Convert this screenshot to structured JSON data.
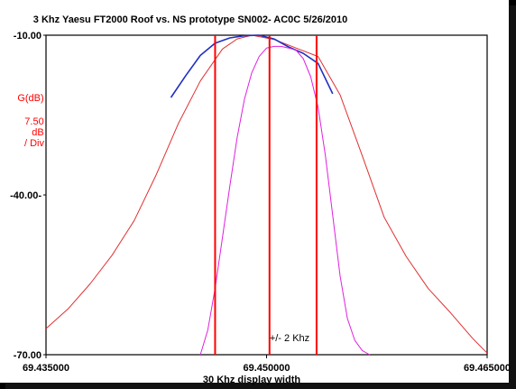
{
  "chart_data": {
    "type": "line",
    "title": "3 Khz Yaesu FT2000 Roof vs. NS prototype SN002- AC0C 5/26/2010",
    "ylabel_lines": [
      "G(dB)",
      "7.50",
      "dB",
      "/ Div"
    ],
    "xlabel": "30 Khz display width",
    "annotation": "+/- 2 Khz",
    "x_units": "MHz",
    "xlim": [
      69.435,
      69.465
    ],
    "ylim": [
      -70,
      -10
    ],
    "y_ticks": [
      -10,
      -40,
      -70
    ],
    "y_tick_labels": [
      "-10.00",
      "-40.00-",
      "-70.00"
    ],
    "x_ticks": [
      69.435,
      69.45,
      69.465
    ],
    "x_tick_labels": [
      "69.435000",
      "69.450000",
      "69.465000"
    ],
    "grid": false,
    "markers_x": [
      69.4465,
      69.4502,
      69.4534
    ],
    "series": [
      {
        "color": "#e03030",
        "width": 1,
        "x": [
          69.435,
          69.4365,
          69.438,
          69.4395,
          69.441,
          69.4425,
          69.444,
          69.4455,
          69.447,
          69.448,
          69.449,
          69.4505,
          69.452,
          69.4535,
          69.455,
          69.4565,
          69.458,
          69.4595,
          69.461,
          69.4625,
          69.464,
          69.465
        ],
        "values": [
          -65.1,
          -61.4,
          -56.7,
          -51.3,
          -44.8,
          -36.2,
          -26.6,
          -18.6,
          -12.6,
          -10.7,
          -10.0,
          -10.8,
          -12.4,
          -14.0,
          -21.2,
          -32.6,
          -44.2,
          -51.6,
          -57.6,
          -62.1,
          -66.9,
          -69.7
        ]
      },
      {
        "color": "#2030c0",
        "width": 1.6,
        "x": [
          69.4435,
          69.4445,
          69.4455,
          69.4465,
          69.4475,
          69.4485,
          69.4495,
          69.4505,
          69.4515,
          69.4525,
          69.4535,
          69.4545
        ],
        "values": [
          -21.7,
          -17.6,
          -13.8,
          -11.5,
          -10.5,
          -10.1,
          -10.0,
          -10.7,
          -12.2,
          -13.4,
          -15.3,
          -21.0
        ]
      },
      {
        "color": "#e020e0",
        "width": 1,
        "x": [
          69.4455,
          69.446,
          69.4465,
          69.447,
          69.4475,
          69.448,
          69.4485,
          69.449,
          69.4495,
          69.45,
          69.4505,
          69.451,
          69.4515,
          69.452,
          69.4525,
          69.453,
          69.4535,
          69.454,
          69.4545,
          69.455,
          69.4555,
          69.456,
          69.4565,
          69.457
        ],
        "values": [
          -70.0,
          -65.4,
          -57.6,
          -48.0,
          -38.3,
          -29.2,
          -22.0,
          -17.0,
          -14.0,
          -12.4,
          -12.1,
          -12.1,
          -12.4,
          -12.8,
          -14.4,
          -17.8,
          -23.5,
          -32.6,
          -43.8,
          -55.2,
          -63.2,
          -67.3,
          -69.2,
          -70.0
        ]
      }
    ]
  }
}
